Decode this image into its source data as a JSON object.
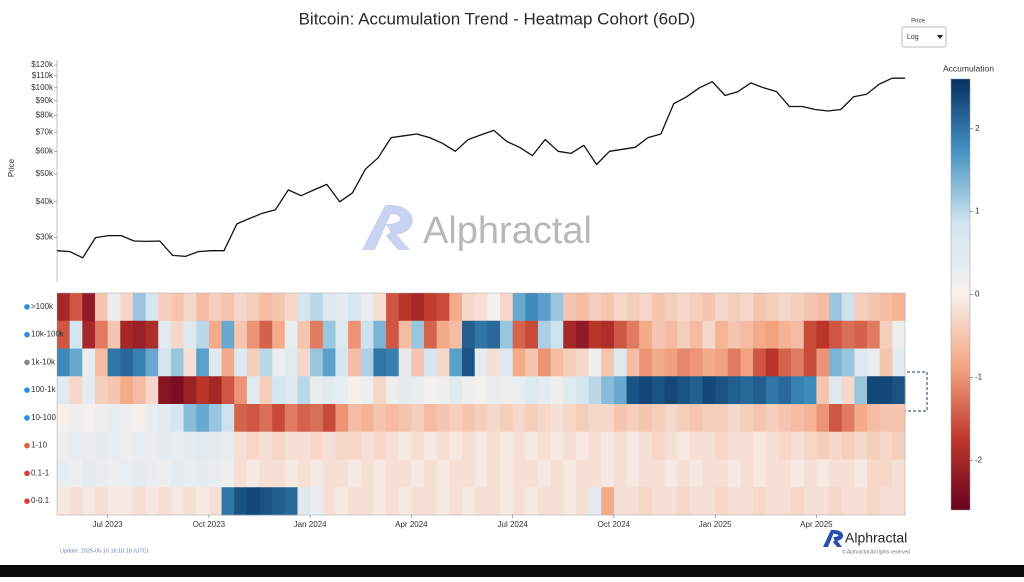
{
  "title": "Bitcoin: Accumulation Trend - Heatmap Cohort (6oD)",
  "controls": {
    "label": "Price",
    "value": "Log"
  },
  "watermark": "Alphractal",
  "footer": {
    "update": "Update: 2025-06-10 16:10:18 (UTC)",
    "brand": "Alphractal",
    "copyright": "© Alphractal All rights reserved"
  },
  "chart_data": [
    {
      "type": "line",
      "ylabel": "Price",
      "log_scale": true,
      "color": "#111111",
      "ylim": [
        21000,
        125000
      ],
      "yticks": [
        {
          "value": 30000,
          "label": "$30k"
        },
        {
          "value": 40000,
          "label": "$40k"
        },
        {
          "value": 50000,
          "label": "$50k"
        },
        {
          "value": 60000,
          "label": "$60k"
        },
        {
          "value": 70000,
          "label": "$70k"
        },
        {
          "value": 80000,
          "label": "$80k"
        },
        {
          "value": 90000,
          "label": "$90k"
        },
        {
          "value": 100000,
          "label": "$100k"
        },
        {
          "value": 110000,
          "label": "$110k"
        },
        {
          "value": 120000,
          "label": "$120k"
        }
      ],
      "values": [
        27000,
        26800,
        25500,
        30000,
        30500,
        30500,
        29200,
        29100,
        29200,
        26000,
        25800,
        26800,
        27000,
        27000,
        33500,
        35000,
        36500,
        37500,
        44000,
        42000,
        44000,
        46000,
        40000,
        43000,
        52000,
        57000,
        67000,
        68000,
        69000,
        67000,
        64000,
        60000,
        66000,
        68500,
        71000,
        65000,
        62000,
        58000,
        66000,
        60000,
        59000,
        63000,
        54000,
        60000,
        61000,
        62000,
        67000,
        69000,
        88000,
        93000,
        100000,
        105000,
        94000,
        97000,
        104000,
        100000,
        97000,
        86000,
        86000,
        84000,
        83000,
        84000,
        93000,
        95000,
        103000,
        108000,
        108000
      ]
    },
    {
      "type": "heatmap",
      "colorbar_title": "Accumulation",
      "zlim": [
        -2.6,
        2.6
      ],
      "zticks": [
        2,
        1,
        0,
        -1,
        -2
      ],
      "colorscale": [
        "#67001f",
        "#c0392b",
        "#f4a582",
        "#f7f1ee",
        "#d1e5f0",
        "#4393c3",
        "#053061"
      ],
      "x": [
        null,
        null,
        null,
        null,
        "Jul 2023",
        null,
        null,
        null,
        null,
        null,
        null,
        null,
        "Oct 2023",
        null,
        null,
        null,
        null,
        null,
        null,
        null,
        "Jan 2024",
        null,
        null,
        null,
        null,
        null,
        null,
        null,
        "Apr 2024",
        null,
        null,
        null,
        null,
        null,
        null,
        null,
        "Jul 2024",
        null,
        null,
        null,
        null,
        null,
        null,
        null,
        "Oct 2024",
        null,
        null,
        null,
        null,
        null,
        null,
        null,
        "Jan 2025",
        null,
        null,
        null,
        null,
        null,
        null,
        null,
        "Apr 2025",
        null,
        null,
        null,
        null,
        null,
        null
      ],
      "series": [
        {
          "name": ">100k",
          "values": [
            -2,
            -1.5,
            -2.2,
            -0.5,
            0.3,
            -0.3,
            1.2,
            0.8,
            -0.4,
            -0.5,
            -0.3,
            -0.6,
            -0.4,
            -0.5,
            -0.3,
            -0.4,
            -0.6,
            -0.5,
            -0.3,
            0.8,
            1.0,
            0.6,
            0.4,
            0.7,
            0.3,
            -0.2,
            -1.5,
            -1.8,
            -2,
            -1.7,
            -1.6,
            -0.8,
            -0.3,
            -0.2,
            0.1,
            -0.3,
            1.5,
            1.8,
            1.6,
            1.2,
            -0.5,
            -0.6,
            -0.4,
            -0.5,
            -0.3,
            -0.4,
            -0.3,
            -0.5,
            -0.4,
            -0.3,
            -0.4,
            -0.5,
            -0.3,
            -0.4,
            -0.3,
            -0.5,
            -0.4,
            -0.3,
            -0.4,
            -0.5,
            -0.6,
            1.2,
            0.9,
            -0.4,
            -0.5,
            -0.6,
            -0.7
          ]
        },
        {
          "name": "10k-100k",
          "values": [
            -1.5,
            0.8,
            -2,
            -1.2,
            -0.5,
            -2,
            -2.1,
            -1.9,
            0.5,
            -0.3,
            0.6,
            1.0,
            -0.8,
            1.5,
            -0.5,
            -1,
            -1.4,
            -0.8,
            0.3,
            -0.5,
            -1.2,
            1.2,
            0.6,
            -1.0,
            0.9,
            1.4,
            -1.5,
            -0.6,
            1.2,
            -1.4,
            -0.8,
            -0.6,
            2.2,
            2.0,
            2.1,
            1.2,
            -1.4,
            -1.6,
            1.1,
            0.9,
            -2.0,
            -2.2,
            -1.8,
            -1.9,
            -1.5,
            -1.2,
            -0.8,
            -0.5,
            -0.6,
            -0.4,
            -0.6,
            -0.3,
            -0.7,
            -0.5,
            -0.6,
            -0.8,
            -0.9,
            -0.7,
            -0.6,
            -1.6,
            -1.8,
            -1.5,
            -1.3,
            -1.4,
            -1.2,
            -0.4,
            0.2
          ]
        },
        {
          "name": "1k-10k",
          "values": [
            1.8,
            1.5,
            0.3,
            -0.6,
            2.0,
            2.1,
            1.9,
            1.5,
            0.8,
            1.2,
            -0.2,
            1.6,
            0.5,
            -0.8,
            0.6,
            -0.4,
            1.0,
            0.2,
            0.5,
            -0.3,
            1.2,
            1.6,
            0.8,
            -0.6,
            1.1,
            2.0,
            1.9,
            0.4,
            -0.5,
            0.8,
            -0.3,
            1.6,
            2.3,
            0.4,
            -0.2,
            0.6,
            -0.8,
            -0.5,
            -1.0,
            -0.6,
            -0.4,
            -0.3,
            0.2,
            -0.5,
            0.6,
            -0.6,
            -1.0,
            -0.8,
            -0.9,
            -1.1,
            -1.0,
            -0.8,
            -0.9,
            -1.2,
            -0.9,
            -1.5,
            -1.8,
            -1.4,
            -1.2,
            -1.6,
            -1.0,
            1.4,
            1.2,
            0.6,
            0.3,
            -0.5,
            0.4
          ]
        },
        {
          "name": "100-1k",
          "values": [
            0.5,
            -0.3,
            0.4,
            -0.4,
            -0.5,
            -0.8,
            -0.6,
            -0.3,
            -2.3,
            -2.4,
            -2.1,
            -1.8,
            -2.0,
            -1.5,
            -1.0,
            0.5,
            -0.4,
            0.8,
            0.6,
            1.0,
            0.3,
            0.5,
            0.3,
            0.1,
            0.2,
            -0.3,
            0.2,
            0.4,
            0.3,
            0.1,
            0.2,
            0.5,
            0.2,
            0.1,
            0.3,
            0.2,
            0.3,
            0.6,
            0.4,
            0.2,
            0.5,
            0.8,
            1.0,
            1.3,
            1.5,
            2.3,
            2.4,
            2.3,
            2.4,
            2.3,
            2.2,
            2.4,
            2.3,
            2.2,
            2.1,
            2.2,
            2.0,
            2.1,
            1.9,
            1.8,
            -0.5,
            0.6,
            -0.3,
            1.2,
            2.4,
            2.4,
            2.3
          ]
        },
        {
          "name": "10-100",
          "values": [
            0.1,
            0.2,
            0.1,
            0.2,
            0.3,
            0.2,
            0.1,
            0.3,
            0.5,
            0.8,
            1.3,
            1.5,
            1.2,
            0.9,
            -1.4,
            -1.5,
            -1.3,
            -1.6,
            -1.2,
            -1.4,
            -1.3,
            -1.6,
            -1.0,
            -0.6,
            -0.7,
            -0.5,
            -0.6,
            -0.5,
            -0.4,
            -0.6,
            -0.5,
            -0.4,
            -0.5,
            -0.4,
            -0.3,
            -0.4,
            -0.3,
            -0.4,
            -0.3,
            -0.2,
            -0.3,
            -0.4,
            -0.3,
            -0.3,
            -0.5,
            -0.4,
            -0.5,
            -0.4,
            -0.3,
            -0.4,
            -0.5,
            -0.4,
            -0.4,
            -0.3,
            -0.4,
            -0.5,
            -0.4,
            -0.5,
            -0.6,
            -0.7,
            -1.0,
            -1.5,
            -1.2,
            -0.8,
            -0.6,
            -0.5,
            -0.5
          ]
        },
        {
          "name": "1-10",
          "values": [
            0.2,
            0.3,
            0.3,
            0.4,
            0.3,
            0.2,
            0.3,
            0.3,
            0.4,
            0.3,
            0.4,
            0.5,
            0.4,
            0.3,
            -0.2,
            -0.3,
            -0.2,
            -0.3,
            -0.2,
            -0.2,
            -0.3,
            -0.2,
            -0.3,
            -0.3,
            -0.2,
            -0.3,
            -0.2,
            -0.1,
            -0.2,
            -0.1,
            -0.2,
            -0.1,
            -0.2,
            -0.1,
            -0.2,
            -0.1,
            -0.2,
            -0.1,
            -0.2,
            -0.1,
            -0.2,
            -0.1,
            -0.2,
            -0.1,
            -0.2,
            -0.1,
            -0.2,
            -0.3,
            -0.2,
            -0.1,
            -0.2,
            -0.2,
            -0.3,
            -0.2,
            -0.2,
            -0.1,
            -0.2,
            -0.3,
            -0.2,
            -0.3,
            -0.4,
            -0.3,
            -0.4,
            -0.3,
            -0.4,
            -0.3,
            -0.4
          ]
        },
        {
          "name": "0.1-1",
          "values": [
            0.3,
            0.2,
            0.4,
            0.3,
            0.2,
            0.3,
            0.4,
            0.3,
            0.2,
            0.4,
            0.3,
            0.4,
            0.3,
            0.2,
            -0.2,
            -0.1,
            -0.2,
            -0.2,
            -0.1,
            -0.2,
            -0.1,
            -0.2,
            -0.2,
            -0.1,
            -0.2,
            -0.1,
            -0.2,
            -0.2,
            -0.1,
            -0.2,
            -0.1,
            -0.2,
            -0.2,
            -0.1,
            -0.2,
            -0.1,
            -0.2,
            -0.2,
            -0.1,
            -0.2,
            -0.1,
            -0.2,
            -0.2,
            -0.1,
            -0.2,
            -0.1,
            -0.2,
            -0.2,
            -0.1,
            -0.2,
            -0.1,
            -0.2,
            -0.2,
            -0.1,
            -0.2,
            -0.1,
            -0.2,
            -0.2,
            -0.1,
            -0.2,
            -0.1,
            -0.2,
            -0.2,
            -0.1,
            -0.3,
            -0.3,
            -0.2
          ]
        },
        {
          "name": "0-0.1",
          "values": [
            -0.1,
            -0.2,
            -0.1,
            -0.2,
            -0.1,
            -0.1,
            -0.2,
            -0.1,
            -0.2,
            -0.1,
            -0.2,
            -0.1,
            -0.2,
            2.0,
            2.3,
            2.4,
            2.3,
            2.2,
            2.1,
            0.6,
            0.3,
            -0.2,
            -0.1,
            -0.2,
            -0.2,
            -0.1,
            -0.2,
            -0.1,
            -0.2,
            -0.2,
            -0.1,
            -0.2,
            -0.1,
            -0.2,
            -0.2,
            -0.1,
            -0.2,
            -0.1,
            -0.2,
            -0.2,
            -0.1,
            -0.2,
            0.5,
            -0.8,
            -0.2,
            -0.2,
            -0.3,
            -0.2,
            -0.2,
            -0.3,
            -0.2,
            -0.2,
            -0.3,
            -0.2,
            -0.2,
            -0.3,
            -0.2,
            -0.2,
            -0.3,
            -0.2,
            -0.2,
            -0.3,
            -0.2,
            -0.2,
            -0.3,
            -0.2,
            -0.2
          ]
        }
      ]
    }
  ]
}
